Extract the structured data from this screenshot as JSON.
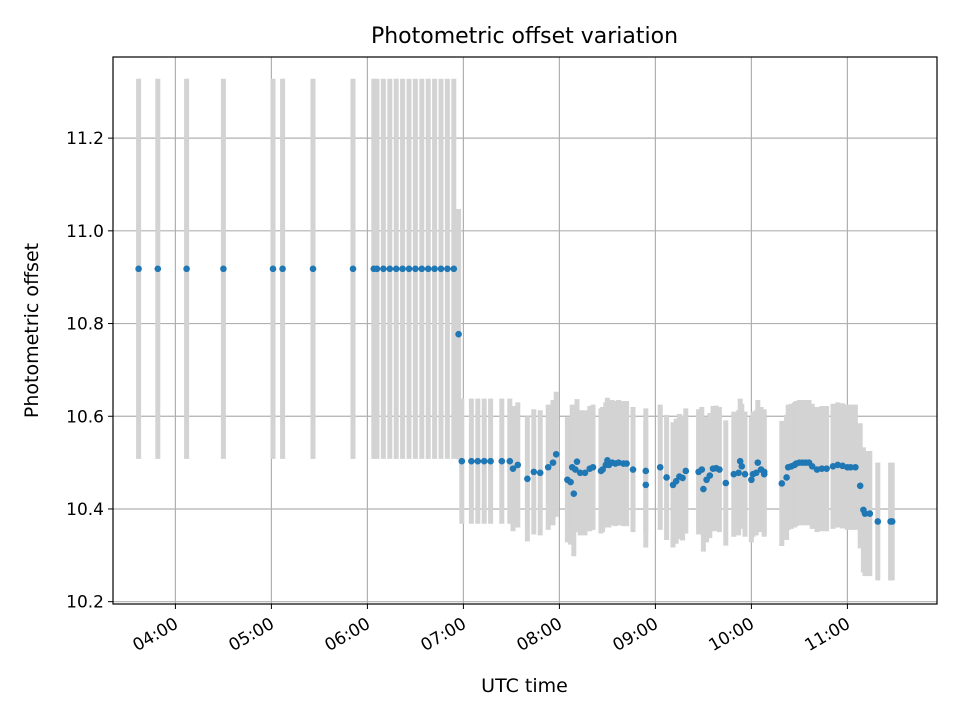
{
  "chart_data": {
    "type": "scatter",
    "title": "Photometric offset variation",
    "xlabel": "UTC time",
    "ylabel": "Photometric offset",
    "x_ticks": [
      "04:00",
      "05:00",
      "06:00",
      "07:00",
      "08:00",
      "09:00",
      "10:00",
      "11:00"
    ],
    "y_ticks": [
      "10.2",
      "10.4",
      "10.6",
      "10.8",
      "11.0",
      "11.2"
    ],
    "xlim": [
      "03:21",
      "11:56"
    ],
    "ylim": [
      10.195,
      11.375
    ],
    "grid": true,
    "point_color": "#1f77b4",
    "errorbar_color": "#d3d3d3",
    "points": [
      {
        "t": "03:37",
        "y": 10.918,
        "err": 0.41
      },
      {
        "t": "03:49",
        "y": 10.918,
        "err": 0.41
      },
      {
        "t": "04:07",
        "y": 10.918,
        "err": 0.41
      },
      {
        "t": "04:30",
        "y": 10.918,
        "err": 0.41
      },
      {
        "t": "05:01",
        "y": 10.918,
        "err": 0.41
      },
      {
        "t": "05:07",
        "y": 10.918,
        "err": 0.41
      },
      {
        "t": "05:26",
        "y": 10.918,
        "err": 0.41
      },
      {
        "t": "05:51",
        "y": 10.918,
        "err": 0.41
      },
      {
        "t": "06:04",
        "y": 10.918,
        "err": 0.41
      },
      {
        "t": "06:06",
        "y": 10.918,
        "err": 0.41
      },
      {
        "t": "06:10",
        "y": 10.918,
        "err": 0.41
      },
      {
        "t": "06:14",
        "y": 10.918,
        "err": 0.41
      },
      {
        "t": "06:18",
        "y": 10.918,
        "err": 0.41
      },
      {
        "t": "06:22",
        "y": 10.918,
        "err": 0.41
      },
      {
        "t": "06:26",
        "y": 10.918,
        "err": 0.41
      },
      {
        "t": "06:30",
        "y": 10.918,
        "err": 0.41
      },
      {
        "t": "06:34",
        "y": 10.918,
        "err": 0.41
      },
      {
        "t": "06:38",
        "y": 10.918,
        "err": 0.41
      },
      {
        "t": "06:42",
        "y": 10.918,
        "err": 0.41
      },
      {
        "t": "06:46",
        "y": 10.918,
        "err": 0.41
      },
      {
        "t": "06:50",
        "y": 10.918,
        "err": 0.41
      },
      {
        "t": "06:54",
        "y": 10.918,
        "err": 0.41
      },
      {
        "t": "06:57",
        "y": 10.777,
        "err": 0.27
      },
      {
        "t": "06:59",
        "y": 10.503,
        "err": 0.135
      },
      {
        "t": "07:05",
        "y": 10.503,
        "err": 0.135
      },
      {
        "t": "07:09",
        "y": 10.503,
        "err": 0.135
      },
      {
        "t": "07:13",
        "y": 10.503,
        "err": 0.135
      },
      {
        "t": "07:17",
        "y": 10.503,
        "err": 0.135
      },
      {
        "t": "07:24",
        "y": 10.503,
        "err": 0.135
      },
      {
        "t": "07:29",
        "y": 10.503,
        "err": 0.135
      },
      {
        "t": "07:31",
        "y": 10.487,
        "err": 0.135
      },
      {
        "t": "07:34",
        "y": 10.495,
        "err": 0.135
      },
      {
        "t": "07:40",
        "y": 10.465,
        "err": 0.135
      },
      {
        "t": "07:44",
        "y": 10.48,
        "err": 0.135
      },
      {
        "t": "07:48",
        "y": 10.478,
        "err": 0.135
      },
      {
        "t": "07:53",
        "y": 10.49,
        "err": 0.135
      },
      {
        "t": "07:56",
        "y": 10.5,
        "err": 0.135
      },
      {
        "t": "07:58",
        "y": 10.518,
        "err": 0.135
      },
      {
        "t": "08:05",
        "y": 10.463,
        "err": 0.135
      },
      {
        "t": "08:07",
        "y": 10.458,
        "err": 0.135
      },
      {
        "t": "08:08",
        "y": 10.49,
        "err": 0.135
      },
      {
        "t": "08:09",
        "y": 10.433,
        "err": 0.135
      },
      {
        "t": "08:10",
        "y": 10.485,
        "err": 0.135
      },
      {
        "t": "08:11",
        "y": 10.502,
        "err": 0.135
      },
      {
        "t": "08:13",
        "y": 10.478,
        "err": 0.135
      },
      {
        "t": "08:16",
        "y": 10.478,
        "err": 0.135
      },
      {
        "t": "08:19",
        "y": 10.487,
        "err": 0.135
      },
      {
        "t": "08:21",
        "y": 10.49,
        "err": 0.135
      },
      {
        "t": "08:26",
        "y": 10.482,
        "err": 0.135
      },
      {
        "t": "08:27",
        "y": 10.485,
        "err": 0.135
      },
      {
        "t": "08:29",
        "y": 10.495,
        "err": 0.135
      },
      {
        "t": "08:30",
        "y": 10.505,
        "err": 0.135
      },
      {
        "t": "08:31",
        "y": 10.495,
        "err": 0.135
      },
      {
        "t": "08:33",
        "y": 10.5,
        "err": 0.135
      },
      {
        "t": "08:35",
        "y": 10.498,
        "err": 0.135
      },
      {
        "t": "08:37",
        "y": 10.5,
        "err": 0.135
      },
      {
        "t": "08:40",
        "y": 10.498,
        "err": 0.135
      },
      {
        "t": "08:42",
        "y": 10.498,
        "err": 0.135
      },
      {
        "t": "08:46",
        "y": 10.485,
        "err": 0.135
      },
      {
        "t": "08:54",
        "y": 10.482,
        "err": 0.135
      },
      {
        "t": "08:54",
        "y": 10.452,
        "err": 0.135
      },
      {
        "t": "09:03",
        "y": 10.49,
        "err": 0.135
      },
      {
        "t": "09:07",
        "y": 10.468,
        "err": 0.135
      },
      {
        "t": "09:11",
        "y": 10.452,
        "err": 0.135
      },
      {
        "t": "09:13",
        "y": 10.46,
        "err": 0.135
      },
      {
        "t": "09:15",
        "y": 10.47,
        "err": 0.135
      },
      {
        "t": "09:17",
        "y": 10.467,
        "err": 0.135
      },
      {
        "t": "09:19",
        "y": 10.482,
        "err": 0.135
      },
      {
        "t": "09:27",
        "y": 10.48,
        "err": 0.135
      },
      {
        "t": "09:29",
        "y": 10.485,
        "err": 0.135
      },
      {
        "t": "09:30",
        "y": 10.443,
        "err": 0.135
      },
      {
        "t": "09:32",
        "y": 10.463,
        "err": 0.135
      },
      {
        "t": "09:34",
        "y": 10.472,
        "err": 0.135
      },
      {
        "t": "09:36",
        "y": 10.487,
        "err": 0.135
      },
      {
        "t": "09:38",
        "y": 10.488,
        "err": 0.135
      },
      {
        "t": "09:40",
        "y": 10.485,
        "err": 0.135
      },
      {
        "t": "09:44",
        "y": 10.456,
        "err": 0.135
      },
      {
        "t": "09:49",
        "y": 10.475,
        "err": 0.135
      },
      {
        "t": "09:52",
        "y": 10.478,
        "err": 0.135
      },
      {
        "t": "09:53",
        "y": 10.503,
        "err": 0.135
      },
      {
        "t": "09:54",
        "y": 10.492,
        "err": 0.135
      },
      {
        "t": "09:56",
        "y": 10.475,
        "err": 0.135
      },
      {
        "t": "10:00",
        "y": 10.463,
        "err": 0.135
      },
      {
        "t": "10:01",
        "y": 10.475,
        "err": 0.135
      },
      {
        "t": "10:03",
        "y": 10.478,
        "err": 0.135
      },
      {
        "t": "10:04",
        "y": 10.5,
        "err": 0.135
      },
      {
        "t": "10:06",
        "y": 10.485,
        "err": 0.135
      },
      {
        "t": "10:08",
        "y": 10.48,
        "err": 0.135
      },
      {
        "t": "10:08",
        "y": 10.475,
        "err": 0.135
      },
      {
        "t": "10:19",
        "y": 10.455,
        "err": 0.135
      },
      {
        "t": "10:22",
        "y": 10.468,
        "err": 0.135
      },
      {
        "t": "10:23",
        "y": 10.49,
        "err": 0.135
      },
      {
        "t": "10:25",
        "y": 10.492,
        "err": 0.135
      },
      {
        "t": "10:27",
        "y": 10.495,
        "err": 0.135
      },
      {
        "t": "10:28",
        "y": 10.498,
        "err": 0.135
      },
      {
        "t": "10:30",
        "y": 10.5,
        "err": 0.135
      },
      {
        "t": "10:32",
        "y": 10.5,
        "err": 0.135
      },
      {
        "t": "10:34",
        "y": 10.5,
        "err": 0.135
      },
      {
        "t": "10:36",
        "y": 10.5,
        "err": 0.135
      },
      {
        "t": "10:38",
        "y": 10.492,
        "err": 0.135
      },
      {
        "t": "10:41",
        "y": 10.485,
        "err": 0.135
      },
      {
        "t": "10:44",
        "y": 10.487,
        "err": 0.135
      },
      {
        "t": "10:47",
        "y": 10.487,
        "err": 0.135
      },
      {
        "t": "10:51",
        "y": 10.492,
        "err": 0.135
      },
      {
        "t": "10:54",
        "y": 10.495,
        "err": 0.135
      },
      {
        "t": "10:57",
        "y": 10.493,
        "err": 0.135
      },
      {
        "t": "11:00",
        "y": 10.49,
        "err": 0.135
      },
      {
        "t": "11:02",
        "y": 10.49,
        "err": 0.135
      },
      {
        "t": "11:05",
        "y": 10.49,
        "err": 0.135
      },
      {
        "t": "11:08",
        "y": 10.45,
        "err": 0.135
      },
      {
        "t": "11:10",
        "y": 10.398,
        "err": 0.135
      },
      {
        "t": "11:11",
        "y": 10.39,
        "err": 0.135
      },
      {
        "t": "11:14",
        "y": 10.39,
        "err": 0.135
      },
      {
        "t": "11:19",
        "y": 10.373,
        "err": 0.127
      },
      {
        "t": "11:27",
        "y": 10.373,
        "err": 0.127
      },
      {
        "t": "11:28",
        "y": 10.373,
        "err": 0.127
      }
    ]
  }
}
